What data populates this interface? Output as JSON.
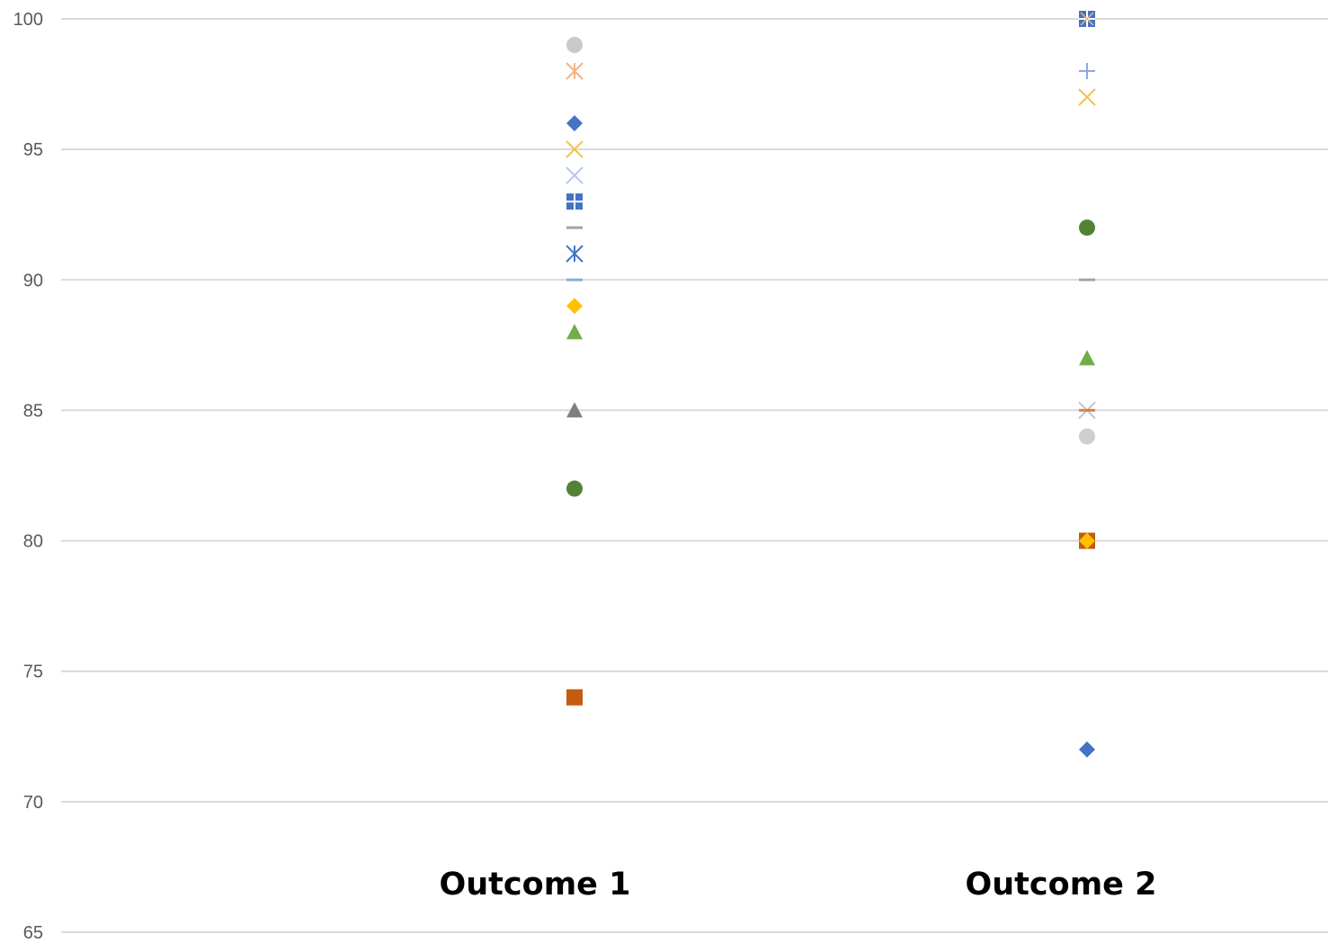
{
  "chart_data": {
    "type": "scatter",
    "title": "",
    "xlabel": "",
    "ylabel": "",
    "ylim": [
      65,
      100
    ],
    "yticks": [
      100,
      95,
      90,
      85,
      80,
      75,
      70,
      65
    ],
    "grid": true,
    "legend": "none",
    "categories": [
      "Outcome 1",
      "Outcome 2"
    ],
    "points": [
      {
        "category": "Outcome 1",
        "value": 99,
        "marker": "circle",
        "color": "#c9c9c9"
      },
      {
        "category": "Outcome 1",
        "value": 98,
        "marker": "asterisk",
        "color": "#f4b183"
      },
      {
        "category": "Outcome 1",
        "value": 96,
        "marker": "diamond",
        "color": "#4472c4"
      },
      {
        "category": "Outcome 1",
        "value": 95,
        "marker": "x",
        "color": "#f2c14e"
      },
      {
        "category": "Outcome 1",
        "value": 94,
        "marker": "x",
        "color": "#b4c7e7"
      },
      {
        "category": "Outcome 1",
        "value": 93,
        "marker": "square-cross",
        "color": "#4472c4"
      },
      {
        "category": "Outcome 1",
        "value": 92,
        "marker": "dash",
        "color": "#a5a5a5"
      },
      {
        "category": "Outcome 1",
        "value": 91,
        "marker": "asterisk",
        "color": "#4472c4"
      },
      {
        "category": "Outcome 1",
        "value": 90,
        "marker": "dash",
        "color": "#8faadc"
      },
      {
        "category": "Outcome 1",
        "value": 89,
        "marker": "diamond",
        "color": "#ffc000"
      },
      {
        "category": "Outcome 1",
        "value": 88,
        "marker": "triangle",
        "color": "#70ad47"
      },
      {
        "category": "Outcome 1",
        "value": 85,
        "marker": "triangle",
        "color": "#7f7f7f"
      },
      {
        "category": "Outcome 1",
        "value": 82,
        "marker": "circle",
        "color": "#548235"
      },
      {
        "category": "Outcome 1",
        "value": 74,
        "marker": "square",
        "color": "#c55a11"
      },
      {
        "category": "Outcome 2",
        "value": 100,
        "marker": "square-asterisk",
        "color": "#4472c4"
      },
      {
        "category": "Outcome 2",
        "value": 98,
        "marker": "plus",
        "color": "#8faadc"
      },
      {
        "category": "Outcome 2",
        "value": 97,
        "marker": "x",
        "color": "#f2c14e"
      },
      {
        "category": "Outcome 2",
        "value": 92,
        "marker": "circle",
        "color": "#548235"
      },
      {
        "category": "Outcome 2",
        "value": 90,
        "marker": "dash",
        "color": "#a5a5a5"
      },
      {
        "category": "Outcome 2",
        "value": 87,
        "marker": "triangle",
        "color": "#70ad47"
      },
      {
        "category": "Outcome 2",
        "value": 85,
        "marker": "x",
        "color": "#b4c7e7"
      },
      {
        "category": "Outcome 2",
        "value": 85,
        "marker": "dash",
        "color": "#ed7d31"
      },
      {
        "category": "Outcome 2",
        "value": 84,
        "marker": "circle",
        "color": "#d0cece"
      },
      {
        "category": "Outcome 2",
        "value": 80,
        "marker": "square",
        "color": "#c55a11"
      },
      {
        "category": "Outcome 2",
        "value": 80,
        "marker": "diamond",
        "color": "#ffc000"
      },
      {
        "category": "Outcome 2",
        "value": 72,
        "marker": "diamond",
        "color": "#4472c4"
      }
    ]
  }
}
